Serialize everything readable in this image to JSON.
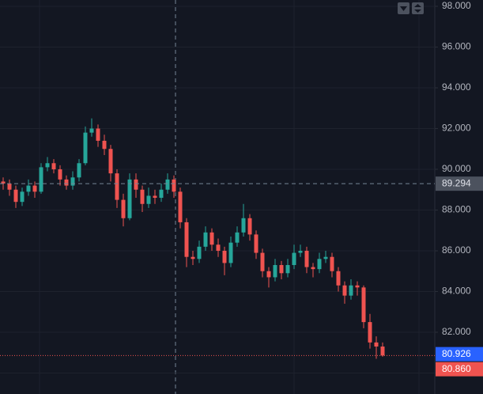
{
  "chart_data": {
    "type": "candlestick",
    "ylim": [
      78.97,
      98.31
    ],
    "yticks": [
      {
        "value": 98,
        "label": "98.000"
      },
      {
        "value": 96,
        "label": "96.000"
      },
      {
        "value": 94,
        "label": "94.000"
      },
      {
        "value": 92,
        "label": "92.000"
      },
      {
        "value": 90,
        "label": "90.000"
      },
      {
        "value": 88,
        "label": "88.000"
      },
      {
        "value": 86,
        "label": "86.000"
      },
      {
        "value": 84,
        "label": "84.000"
      },
      {
        "value": 82,
        "label": "82.000"
      },
      {
        "value": 80,
        "label": "80.000"
      }
    ],
    "grid": true,
    "up_color": "#26a69a",
    "down_color": "#ef5350",
    "open": [
      89.4,
      89.3,
      89.0,
      88.4,
      88.9,
      89.2,
      88.9,
      90.1,
      90.3,
      90.0,
      89.5,
      89.2,
      89.6,
      90.3,
      91.8,
      92.0,
      91.4,
      91.0,
      89.8,
      88.5,
      87.6,
      89.5,
      89.0,
      88.3,
      88.7,
      88.6,
      89.0,
      89.5,
      88.9,
      87.4,
      85.7,
      85.6,
      86.2,
      86.9,
      86.3,
      86.0,
      85.4,
      86.4,
      86.9,
      87.6,
      86.8,
      85.9,
      85.0,
      84.7,
      85.3,
      84.9,
      85.3,
      85.9,
      86.0,
      85.2,
      85.1,
      85.6,
      85.7,
      85.0,
      84.3,
      83.8,
      84.3,
      84.2,
      82.5,
      81.5,
      81.3
    ],
    "high": [
      89.6,
      89.5,
      89.2,
      89.1,
      89.5,
      89.4,
      90.3,
      90.6,
      90.5,
      90.2,
      89.7,
      89.9,
      90.5,
      92.1,
      92.5,
      92.2,
      91.7,
      91.2,
      90.0,
      88.8,
      89.8,
      89.8,
      89.2,
      89.1,
      89.0,
      89.3,
      89.8,
      89.7,
      89.1,
      87.6,
      86.0,
      86.5,
      87.2,
      87.1,
      86.6,
      86.2,
      86.7,
      87.2,
      88.3,
      87.8,
      87.0,
      86.1,
      85.2,
      85.6,
      85.5,
      85.6,
      86.3,
      86.3,
      86.2,
      85.4,
      85.9,
      86.0,
      85.9,
      85.2,
      84.5,
      84.6,
      84.5,
      84.3,
      82.9,
      81.8,
      81.5
    ],
    "low": [
      89.0,
      88.7,
      88.1,
      88.2,
      88.7,
      88.6,
      88.8,
      89.9,
      89.8,
      89.2,
      89.0,
      89.0,
      89.4,
      90.2,
      91.6,
      91.1,
      90.7,
      89.4,
      88.1,
      87.2,
      87.5,
      88.6,
      87.9,
      88.1,
      88.3,
      88.4,
      88.8,
      88.6,
      87.1,
      85.2,
      85.3,
      85.4,
      86.0,
      86.0,
      85.7,
      84.8,
      85.2,
      86.2,
      86.7,
      86.5,
      85.6,
      84.7,
      84.2,
      84.5,
      84.6,
      84.7,
      85.1,
      85.7,
      84.9,
      84.7,
      84.9,
      85.4,
      84.7,
      84.0,
      83.4,
      83.6,
      83.8,
      82.2,
      81.2,
      80.7,
      80.8
    ],
    "close": [
      89.3,
      89.0,
      88.4,
      88.9,
      89.2,
      88.9,
      90.1,
      90.3,
      90.0,
      89.5,
      89.2,
      89.6,
      90.3,
      91.8,
      92.0,
      91.4,
      91.0,
      89.8,
      88.5,
      87.6,
      89.5,
      89.0,
      88.3,
      88.7,
      88.6,
      89.0,
      89.5,
      88.9,
      87.4,
      85.7,
      85.6,
      86.2,
      86.9,
      86.3,
      86.0,
      85.4,
      86.4,
      86.9,
      87.6,
      86.8,
      85.9,
      85.0,
      84.7,
      85.3,
      84.9,
      85.3,
      85.9,
      86.0,
      85.2,
      85.1,
      85.6,
      85.7,
      85.0,
      84.3,
      83.8,
      84.3,
      84.2,
      82.5,
      81.5,
      81.3,
      80.86
    ],
    "crosshair": {
      "value": 89.294,
      "label": "89.294"
    },
    "bid": {
      "value": 80.926,
      "label": "80.926",
      "color": "#2962ff"
    },
    "last": {
      "value": 80.86,
      "label": "80.860",
      "color": "#ef5350"
    }
  }
}
